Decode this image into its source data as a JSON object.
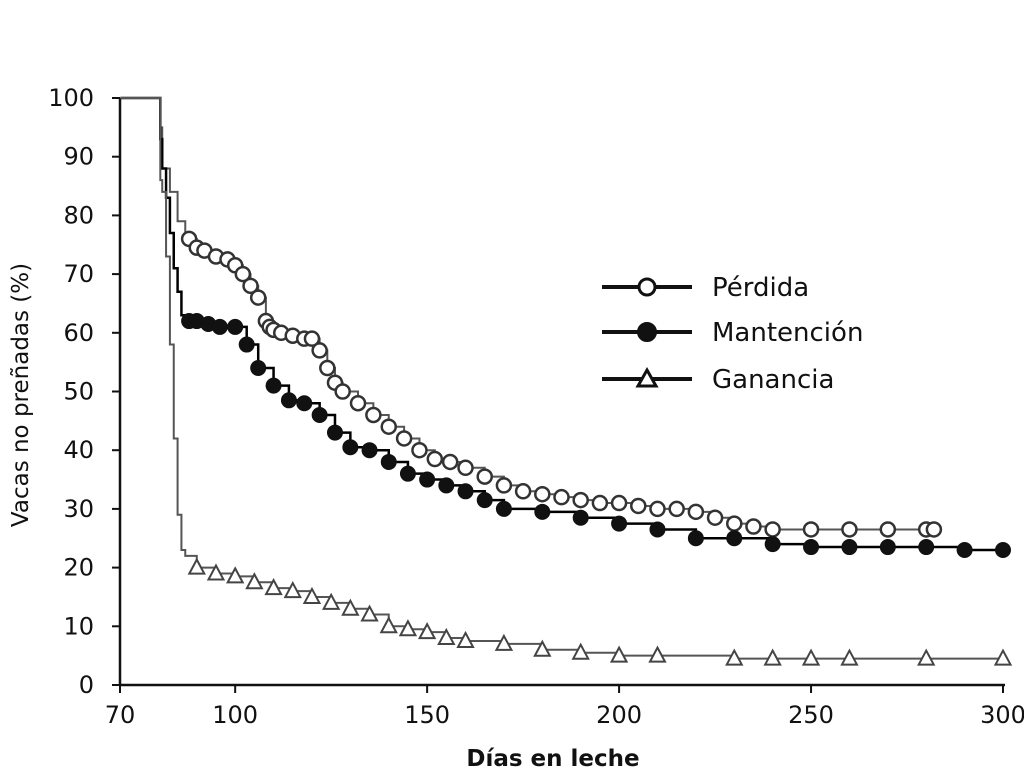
{
  "chart_data": {
    "type": "line",
    "xlabel": "Días en leche",
    "ylabel": "Vacas no preñadas (%)",
    "xlim": [
      70,
      300
    ],
    "ylim": [
      0,
      100
    ],
    "xticks": [
      70,
      100,
      150,
      200,
      250,
      300
    ],
    "yticks": [
      0,
      10,
      20,
      30,
      40,
      50,
      60,
      70,
      80,
      90,
      100
    ],
    "legend_position": "right",
    "series": [
      {
        "name": "Pérdida",
        "marker": "open-circle",
        "color": "#555555",
        "x": [
          80,
          80.5,
          81,
          83,
          85,
          87,
          88,
          90,
          92,
          95,
          98,
          100,
          102,
          104,
          106,
          108,
          109,
          110,
          112,
          115,
          118,
          120,
          122,
          124,
          126,
          128,
          132,
          136,
          140,
          144,
          148,
          152,
          156,
          160,
          165,
          170,
          175,
          180,
          185,
          190,
          195,
          200,
          205,
          210,
          215,
          220,
          225,
          230,
          235,
          240,
          250,
          260,
          270,
          280,
          282
        ],
        "y": [
          100,
          95,
          88,
          84,
          79,
          76,
          76,
          74.5,
          74,
          73,
          72.5,
          71.5,
          70,
          68,
          66,
          62,
          61,
          60.5,
          60,
          59.5,
          59,
          59,
          57,
          54,
          51.5,
          50,
          48,
          46,
          44,
          42,
          40,
          38.5,
          38,
          37,
          35.5,
          34,
          33,
          32.5,
          32,
          31.5,
          31,
          31,
          30.5,
          30,
          30,
          29.5,
          28.5,
          27.5,
          27,
          26.5,
          26.5,
          26.5,
          26.5,
          26.5,
          26.5
        ]
      },
      {
        "name": "Mantención",
        "marker": "filled-circle",
        "color": "#000000",
        "x": [
          80,
          80.5,
          81,
          82,
          83,
          84,
          85,
          86,
          88,
          90,
          93,
          96,
          100,
          103,
          106,
          110,
          114,
          118,
          122,
          126,
          130,
          135,
          140,
          145,
          150,
          155,
          160,
          165,
          170,
          180,
          190,
          200,
          210,
          220,
          230,
          240,
          250,
          260,
          270,
          280,
          290,
          300
        ],
        "y": [
          100,
          93,
          88,
          83,
          77,
          71,
          67,
          63,
          62,
          62,
          61.5,
          61,
          61,
          58,
          54,
          51,
          48.5,
          48,
          46,
          43,
          40.5,
          40,
          38,
          36,
          35,
          34,
          33,
          31.5,
          30,
          29.5,
          28.5,
          27.5,
          26.5,
          25,
          25,
          24,
          23.5,
          23.5,
          23.5,
          23.5,
          23,
          23
        ]
      },
      {
        "name": "Ganancia",
        "marker": "open-triangle",
        "color": "#555555",
        "x": [
          80,
          80.5,
          81,
          82,
          83,
          84,
          85,
          86,
          87,
          90,
          95,
          100,
          105,
          110,
          115,
          120,
          125,
          130,
          135,
          140,
          145,
          150,
          155,
          160,
          170,
          180,
          190,
          200,
          210,
          230,
          240,
          250,
          260,
          280,
          300
        ],
        "y": [
          100,
          86,
          84,
          73,
          58,
          42,
          29,
          23,
          22,
          20,
          19,
          18.5,
          17.5,
          16.5,
          16,
          15,
          14,
          13,
          12,
          10,
          9.5,
          9,
          8,
          7.5,
          7,
          6,
          5.5,
          5,
          5,
          4.5,
          4.5,
          4.5,
          4.5,
          4.5,
          4.5
        ]
      }
    ]
  }
}
